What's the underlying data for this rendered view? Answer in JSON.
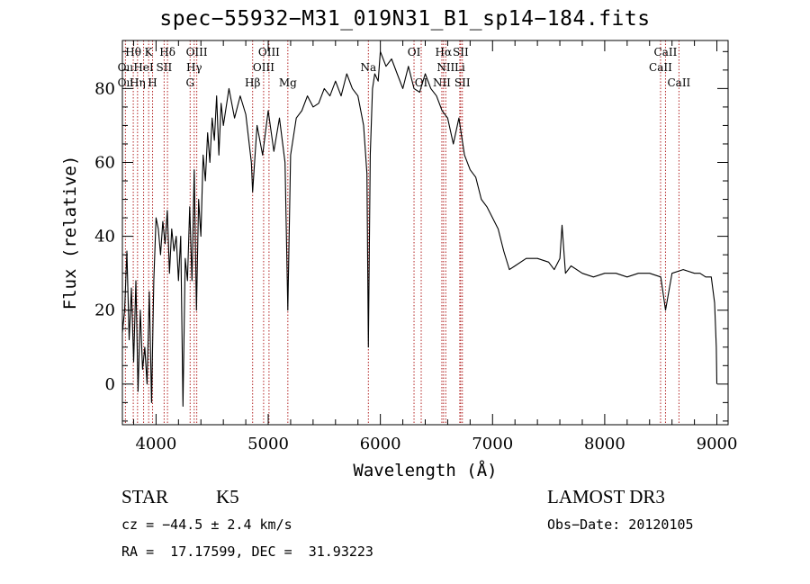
{
  "chart_data": {
    "type": "line",
    "title": "spec−55932−M31_019N31_B1_sp14−184.fits",
    "xlabel": "Wavelength (Å)",
    "ylabel": "Flux (relative)",
    "xlim": [
      3700,
      9100
    ],
    "ylim": [
      -11,
      93
    ],
    "xticks": [
      4000,
      5000,
      6000,
      7000,
      8000,
      9000
    ],
    "yticks": [
      0,
      20,
      40,
      60,
      80
    ],
    "grid": false,
    "series": [
      {
        "name": "spectrum",
        "color": "#000000",
        "x": [
          3700,
          3720,
          3740,
          3760,
          3780,
          3800,
          3820,
          3840,
          3860,
          3880,
          3900,
          3920,
          3940,
          3960,
          3980,
          4000,
          4020,
          4040,
          4060,
          4080,
          4100,
          4120,
          4140,
          4160,
          4180,
          4200,
          4220,
          4240,
          4260,
          4280,
          4300,
          4320,
          4340,
          4360,
          4380,
          4400,
          4420,
          4440,
          4460,
          4480,
          4500,
          4520,
          4540,
          4560,
          4580,
          4600,
          4650,
          4700,
          4750,
          4800,
          4850,
          4861,
          4900,
          4950,
          5000,
          5050,
          5100,
          5150,
          5175,
          5200,
          5250,
          5300,
          5350,
          5400,
          5450,
          5500,
          5550,
          5600,
          5650,
          5700,
          5750,
          5800,
          5850,
          5880,
          5893,
          5910,
          5930,
          5950,
          5980,
          6000,
          6050,
          6100,
          6150,
          6200,
          6250,
          6300,
          6350,
          6400,
          6450,
          6500,
          6550,
          6600,
          6650,
          6700,
          6750,
          6800,
          6850,
          6900,
          6950,
          7000,
          7050,
          7100,
          7150,
          7200,
          7300,
          7400,
          7500,
          7550,
          7600,
          7620,
          7650,
          7700,
          7800,
          7900,
          8000,
          8100,
          8200,
          8300,
          8400,
          8500,
          8542,
          8600,
          8700,
          8800,
          8850,
          8900,
          8950,
          8980,
          8995,
          9000
        ],
        "y": [
          14,
          20,
          36,
          12,
          26,
          6,
          28,
          -2,
          20,
          4,
          10,
          0,
          25,
          -5,
          28,
          45,
          42,
          35,
          44,
          38,
          47,
          30,
          42,
          36,
          40,
          28,
          40,
          -6,
          34,
          28,
          48,
          28,
          58,
          20,
          50,
          40,
          62,
          55,
          68,
          60,
          72,
          66,
          78,
          62,
          76,
          70,
          80,
          72,
          78,
          73,
          60,
          52,
          70,
          62,
          74,
          63,
          72,
          60,
          20,
          62,
          72,
          74,
          78,
          75,
          76,
          80,
          78,
          82,
          78,
          84,
          80,
          78,
          70,
          57,
          10,
          62,
          80,
          84,
          82,
          90,
          86,
          88,
          84,
          80,
          86,
          80,
          79,
          84,
          80,
          78,
          74,
          72,
          65,
          72,
          62,
          58,
          56,
          50,
          48,
          45,
          42,
          36,
          31,
          32,
          34,
          34,
          33,
          31,
          34,
          43,
          30,
          32,
          30,
          29,
          30,
          30,
          29,
          30,
          30,
          29,
          20,
          30,
          31,
          30,
          30,
          29,
          29,
          22,
          10,
          0
        ]
      }
    ],
    "lines": [
      {
        "name": "O II 3727",
        "x": 3727,
        "color": "#b22222"
      },
      {
        "name": "Hθ 3797",
        "x": 3797,
        "color": "#b22222"
      },
      {
        "name": "Hη 3835",
        "x": 3835,
        "color": "#b22222"
      },
      {
        "name": "He I 3889",
        "x": 3889,
        "color": "#b22222"
      },
      {
        "name": "K 3934",
        "x": 3934,
        "color": "#b22222"
      },
      {
        "name": "H 3969",
        "x": 3969,
        "color": "#b22222"
      },
      {
        "name": "S II 4072",
        "x": 4072,
        "color": "#b22222"
      },
      {
        "name": "Hδ 4102",
        "x": 4102,
        "color": "#b22222"
      },
      {
        "name": "G 4304",
        "x": 4304,
        "color": "#b22222"
      },
      {
        "name": "Hγ 4340",
        "x": 4340,
        "color": "#b22222"
      },
      {
        "name": "O III 4363",
        "x": 4363,
        "color": "#b22222"
      },
      {
        "name": "Hβ 4861",
        "x": 4861,
        "color": "#b22222"
      },
      {
        "name": "O III 4959",
        "x": 4959,
        "color": "#b22222"
      },
      {
        "name": "O III 5007",
        "x": 5007,
        "color": "#b22222"
      },
      {
        "name": "Mg 5175",
        "x": 5175,
        "color": "#b22222"
      },
      {
        "name": "Na 5893",
        "x": 5893,
        "color": "#b22222"
      },
      {
        "name": "O I 6300",
        "x": 6300,
        "color": "#b22222"
      },
      {
        "name": "O I 6364",
        "x": 6364,
        "color": "#b22222"
      },
      {
        "name": "N II 6548",
        "x": 6548,
        "color": "#b22222"
      },
      {
        "name": "Hα 6563",
        "x": 6563,
        "color": "#b22222"
      },
      {
        "name": "N II 6583",
        "x": 6583,
        "color": "#b22222"
      },
      {
        "name": "Li 6708",
        "x": 6708,
        "color": "#b22222"
      },
      {
        "name": "S II 6716",
        "x": 6716,
        "color": "#b22222"
      },
      {
        "name": "S II 6731",
        "x": 6731,
        "color": "#b22222"
      },
      {
        "name": "Ca II 8498",
        "x": 8498,
        "color": "#b22222"
      },
      {
        "name": "Ca II 8542",
        "x": 8542,
        "color": "#b22222"
      },
      {
        "name": "Ca II 8662",
        "x": 8662,
        "color": "#b22222"
      }
    ],
    "annotations": [
      {
        "text": "Hθ",
        "x": 3797,
        "row": 1
      },
      {
        "text": "Oıı",
        "x": 3727,
        "row": 2
      },
      {
        "text": "Oıı",
        "x": 3727,
        "row": 3
      },
      {
        "text": "K",
        "x": 3934,
        "row": 1
      },
      {
        "text": "HeI",
        "x": 3889,
        "row": 2
      },
      {
        "text": "Hη",
        "x": 3835,
        "row": 3
      },
      {
        "text": "H",
        "x": 3969,
        "row": 3
      },
      {
        "text": "Hδ",
        "x": 4102,
        "row": 1
      },
      {
        "text": "SII",
        "x": 4072,
        "row": 2
      },
      {
        "text": "OIII",
        "x": 4363,
        "row": 1
      },
      {
        "text": "Hγ",
        "x": 4340,
        "row": 2
      },
      {
        "text": "G",
        "x": 4304,
        "row": 3
      },
      {
        "text": "OIII",
        "x": 5007,
        "row": 1
      },
      {
        "text": "OIII",
        "x": 4959,
        "row": 2
      },
      {
        "text": "Hβ",
        "x": 4861,
        "row": 3
      },
      {
        "text": "Mg",
        "x": 5175,
        "row": 3
      },
      {
        "text": "Na",
        "x": 5893,
        "row": 2
      },
      {
        "text": "OI",
        "x": 6300,
        "row": 1
      },
      {
        "text": "OI",
        "x": 6364,
        "row": 3
      },
      {
        "text": "Hα",
        "x": 6563,
        "row": 1
      },
      {
        "text": "SII",
        "x": 6716,
        "row": 1
      },
      {
        "text": "NII",
        "x": 6583,
        "row": 2
      },
      {
        "text": "Li",
        "x": 6708,
        "row": 2
      },
      {
        "text": "NII",
        "x": 6548,
        "row": 3
      },
      {
        "text": "SII",
        "x": 6731,
        "row": 3
      },
      {
        "text": "CaII",
        "x": 8542,
        "row": 1
      },
      {
        "text": "CaII",
        "x": 8498,
        "row": 2
      },
      {
        "text": "CaII",
        "x": 8662,
        "row": 3
      }
    ]
  },
  "info": {
    "class": "STAR",
    "subclass": "K5",
    "survey": "LAMOST DR3",
    "cz": "cz = −44.5 ± 2.4 km/s",
    "obs_date": "Obs−Date: 20120105",
    "coords": "RA =  17.17599, DEC =  31.93223"
  }
}
